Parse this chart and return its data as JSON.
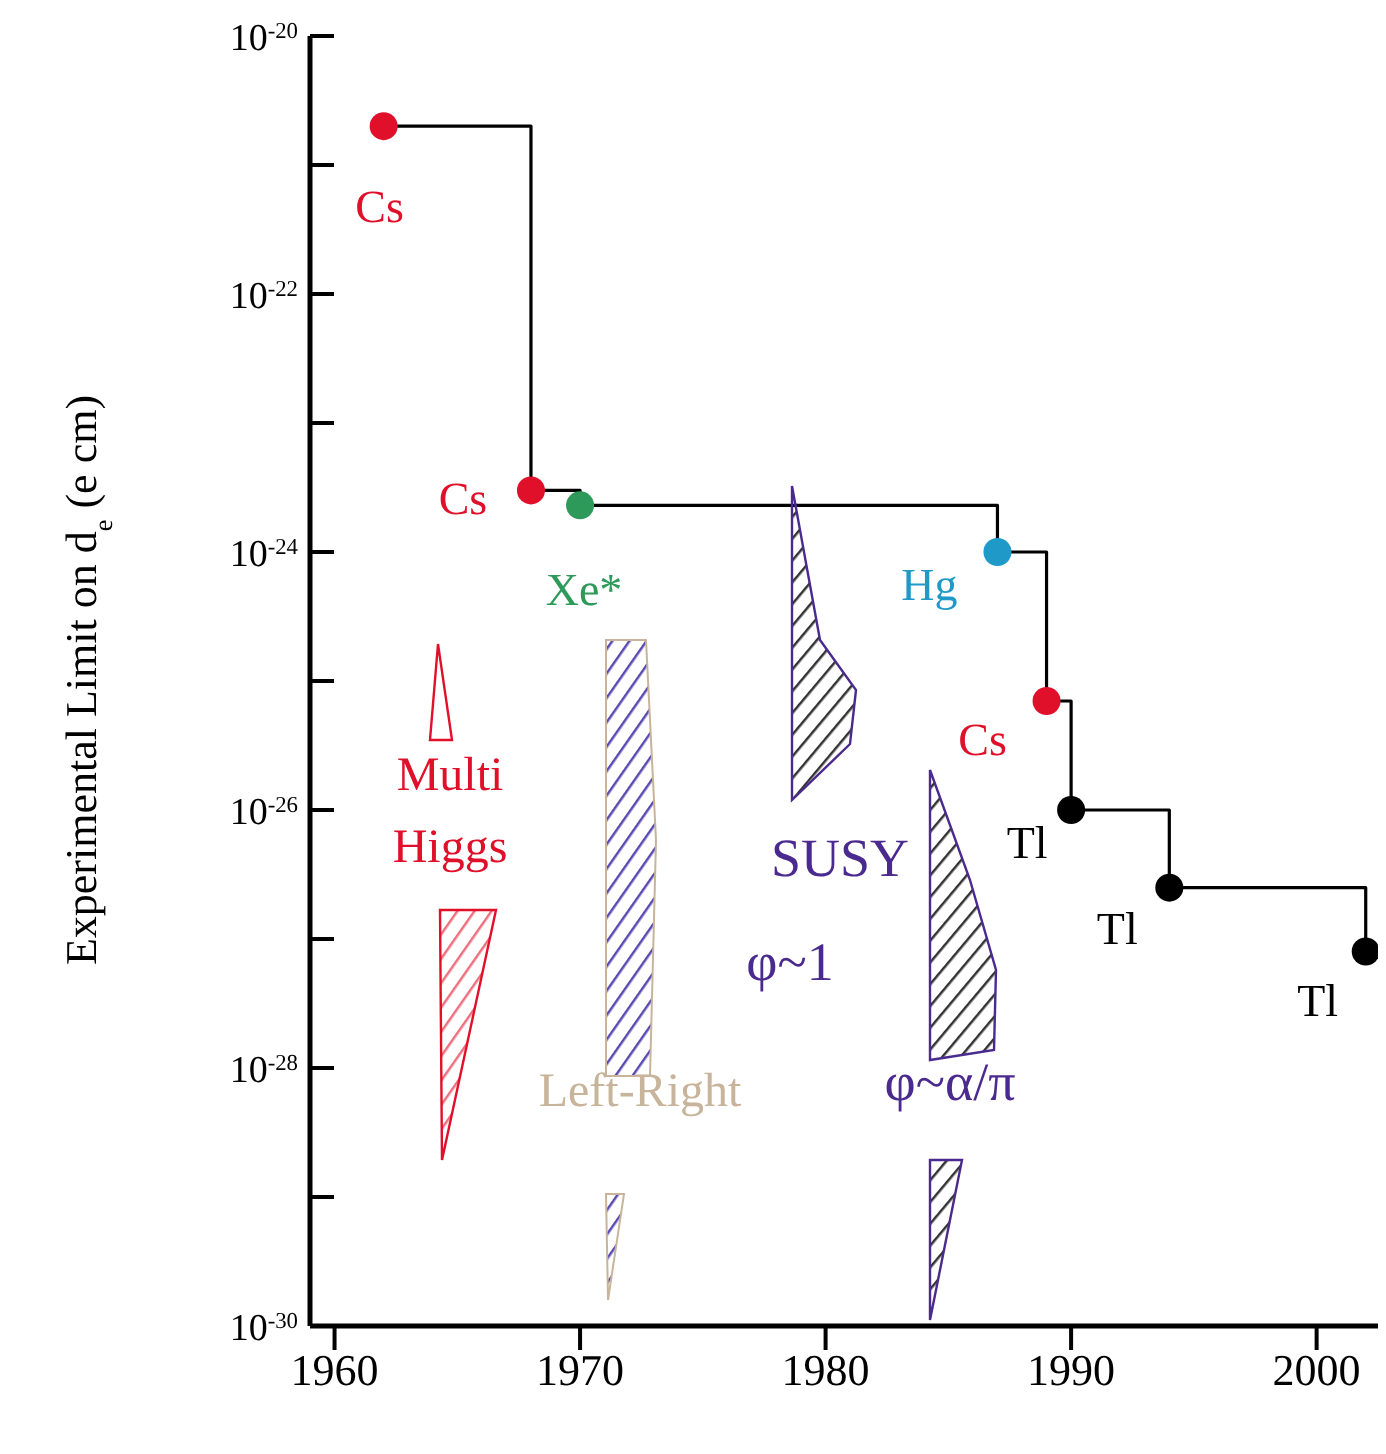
{
  "chart_data": {
    "type": "step",
    "ylabel": "Experimental Limit on d$_{e}$ (e cm)",
    "x": [
      1962,
      1968,
      1970,
      1987,
      1989,
      1990,
      1994,
      2002
    ],
    "series": [
      {
        "color": "#000000",
        "colors": [
          "#e0102a",
          "#e0102a",
          "#2e9a5a",
          "#1f9ac8",
          "#e0102a",
          "#000000",
          "#000000",
          "#000000"
        ],
        "values": [
          2e-21,
          3e-24,
          2.3e-24,
          1e-24,
          7e-26,
          1e-26,
          2.5e-27,
          8e-28
        ]
      }
    ],
    "log": true,
    "xlim": [
      1959,
      2002.5
    ],
    "xticks": [
      1960,
      1970,
      1980,
      1990,
      2000
    ],
    "ylim": [
      1e-30,
      1e-20
    ],
    "yticks": [
      {
        "value": 1e-30,
        "label": "10$^{-30}$"
      },
      {
        "value": 1e-29,
        "label": null
      },
      {
        "value": 1e-28,
        "label": "10$^{-28}$"
      },
      {
        "value": 1e-27,
        "label": null
      },
      {
        "value": 1e-26,
        "label": "10$^{-26}$"
      },
      {
        "value": 1e-25,
        "label": null
      },
      {
        "value": 1e-24,
        "label": "10$^{-24}$"
      },
      {
        "value": 1e-23,
        "label": null
      },
      {
        "value": 1e-22,
        "label": "10$^{-22}$"
      },
      {
        "value": 1e-21,
        "label": null
      },
      {
        "value": 1e-20,
        "label": "10$^{-20}$"
      }
    ],
    "marker": "circle",
    "line_style": "solid",
    "annotations": [
      {
        "text": "Cs",
        "x": 1962,
        "y": 2e-21
      },
      {
        "text": "Cs",
        "x": 1968,
        "y": 3e-24
      },
      {
        "text": "Xe*",
        "x": 1970,
        "y": 2.3e-24
      },
      {
        "text": "Hg",
        "x": 1987,
        "y": 1e-24
      },
      {
        "text": "Cs",
        "x": 1989,
        "y": 7e-26
      },
      {
        "text": "Tl",
        "x": 1990,
        "y": 1e-26
      },
      {
        "text": "Tl",
        "x": 1994,
        "y": 2.5e-27
      },
      {
        "text": "Tl",
        "x": 2002,
        "y": 8e-28
      },
      "Multi Higgs",
      "Left-Right",
      "SUSY",
      "φ~1",
      "φ~α/π"
    ]
  }
}
